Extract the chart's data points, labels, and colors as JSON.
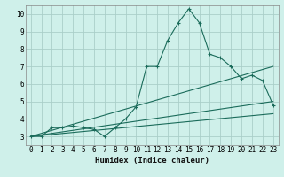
{
  "title": "",
  "xlabel": "Humidex (Indice chaleur)",
  "ylabel": "",
  "bg_color": "#cff0ea",
  "grid_color": "#aacfc9",
  "line_color": "#1a6b5a",
  "xlim": [
    -0.5,
    23.5
  ],
  "ylim": [
    2.5,
    10.5
  ],
  "xticks": [
    0,
    1,
    2,
    3,
    4,
    5,
    6,
    7,
    8,
    9,
    10,
    11,
    12,
    13,
    14,
    15,
    16,
    17,
    18,
    19,
    20,
    21,
    22,
    23
  ],
  "yticks": [
    3,
    4,
    5,
    6,
    7,
    8,
    9,
    10
  ],
  "series": [
    [
      0,
      3
    ],
    [
      1,
      3
    ],
    [
      2,
      3.5
    ],
    [
      3,
      3.5
    ],
    [
      4,
      3.6
    ],
    [
      5,
      3.5
    ],
    [
      6,
      3.4
    ],
    [
      7,
      3.0
    ],
    [
      8,
      3.5
    ],
    [
      9,
      4.0
    ],
    [
      10,
      4.7
    ],
    [
      11,
      7.0
    ],
    [
      12,
      7.0
    ],
    [
      13,
      8.5
    ],
    [
      14,
      9.5
    ],
    [
      15,
      10.3
    ],
    [
      16,
      9.5
    ],
    [
      17,
      7.7
    ],
    [
      18,
      7.5
    ],
    [
      19,
      7.0
    ],
    [
      20,
      6.3
    ],
    [
      21,
      6.5
    ],
    [
      22,
      6.2
    ],
    [
      23,
      4.8
    ]
  ],
  "line2": [
    [
      0,
      3
    ],
    [
      23,
      7.0
    ]
  ],
  "line3": [
    [
      0,
      3
    ],
    [
      23,
      5.0
    ]
  ],
  "line4": [
    [
      0,
      3
    ],
    [
      23,
      4.3
    ]
  ]
}
